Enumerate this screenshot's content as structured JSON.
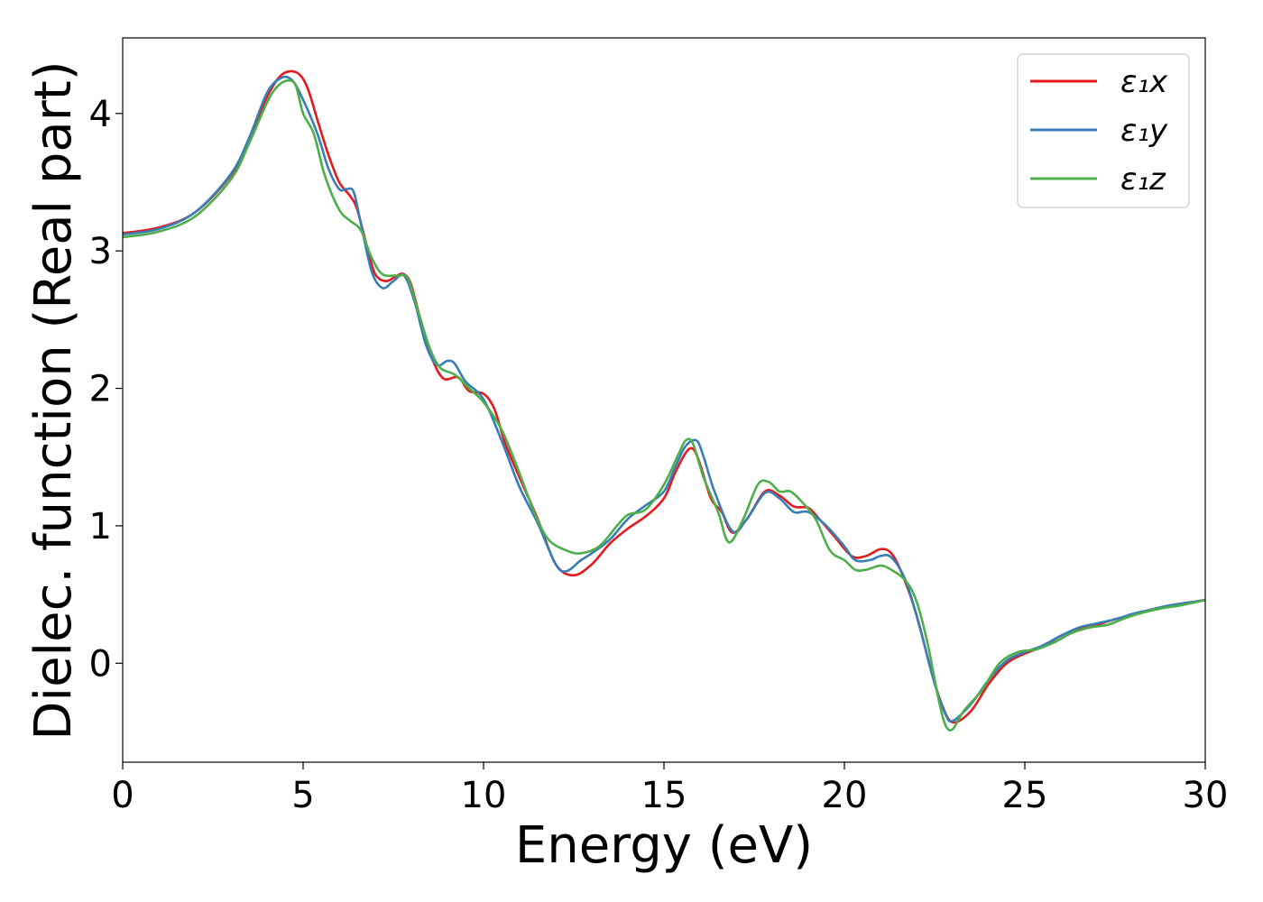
{
  "chart_data": {
    "type": "line",
    "xlabel": "Energy (eV)",
    "ylabel": "Dielec. function (Real part)",
    "xlim": [
      0,
      30
    ],
    "ylim": [
      -0.72,
      4.55
    ],
    "xticks": [
      0,
      5,
      10,
      15,
      20,
      25,
      30
    ],
    "yticks": [
      0,
      1,
      2,
      3,
      4
    ],
    "grid": false,
    "legend_position": "top-right",
    "series": [
      {
        "name": "ε₁x",
        "color": "#e41a1c",
        "points": [
          [
            0,
            3.13
          ],
          [
            1,
            3.17
          ],
          [
            2,
            3.28
          ],
          [
            3,
            3.55
          ],
          [
            3.5,
            3.8
          ],
          [
            4,
            4.12
          ],
          [
            4.4,
            4.28
          ],
          [
            4.8,
            4.3
          ],
          [
            5.1,
            4.2
          ],
          [
            5.4,
            3.95
          ],
          [
            5.7,
            3.7
          ],
          [
            6,
            3.5
          ],
          [
            6.3,
            3.4
          ],
          [
            6.5,
            3.3
          ],
          [
            6.8,
            3.0
          ],
          [
            7,
            2.83
          ],
          [
            7.3,
            2.78
          ],
          [
            7.6,
            2.82
          ],
          [
            7.8,
            2.83
          ],
          [
            8,
            2.75
          ],
          [
            8.3,
            2.45
          ],
          [
            8.6,
            2.2
          ],
          [
            8.9,
            2.07
          ],
          [
            9.3,
            2.08
          ],
          [
            9.6,
            1.98
          ],
          [
            10,
            1.96
          ],
          [
            10.3,
            1.85
          ],
          [
            10.6,
            1.6
          ],
          [
            11,
            1.35
          ],
          [
            11.5,
            1.05
          ],
          [
            12,
            0.72
          ],
          [
            12.5,
            0.64
          ],
          [
            13,
            0.72
          ],
          [
            13.5,
            0.87
          ],
          [
            14,
            0.98
          ],
          [
            14.5,
            1.07
          ],
          [
            15,
            1.2
          ],
          [
            15.3,
            1.38
          ],
          [
            15.6,
            1.53
          ],
          [
            15.8,
            1.56
          ],
          [
            16,
            1.45
          ],
          [
            16.3,
            1.2
          ],
          [
            16.6,
            1.1
          ],
          [
            16.9,
            0.95
          ],
          [
            17.3,
            1.05
          ],
          [
            17.8,
            1.25
          ],
          [
            18.2,
            1.22
          ],
          [
            18.6,
            1.14
          ],
          [
            19,
            1.13
          ],
          [
            19.3,
            1.05
          ],
          [
            19.7,
            0.93
          ],
          [
            20.2,
            0.78
          ],
          [
            20.6,
            0.78
          ],
          [
            21,
            0.83
          ],
          [
            21.3,
            0.8
          ],
          [
            21.6,
            0.65
          ],
          [
            22,
            0.35
          ],
          [
            22.4,
            -0.05
          ],
          [
            22.7,
            -0.3
          ],
          [
            23,
            -0.43
          ],
          [
            23.5,
            -0.35
          ],
          [
            24,
            -0.15
          ],
          [
            24.5,
            0.0
          ],
          [
            25,
            0.07
          ],
          [
            25.5,
            0.12
          ],
          [
            26,
            0.2
          ],
          [
            26.5,
            0.25
          ],
          [
            27,
            0.28
          ],
          [
            27.5,
            0.32
          ],
          [
            28,
            0.35
          ],
          [
            28.5,
            0.39
          ],
          [
            29,
            0.42
          ],
          [
            29.5,
            0.44
          ],
          [
            30,
            0.46
          ]
        ]
      },
      {
        "name": "ε₁y",
        "color": "#377eb8",
        "points": [
          [
            0,
            3.12
          ],
          [
            1,
            3.16
          ],
          [
            2,
            3.28
          ],
          [
            3,
            3.56
          ],
          [
            3.5,
            3.82
          ],
          [
            4,
            4.15
          ],
          [
            4.4,
            4.26
          ],
          [
            4.7,
            4.24
          ],
          [
            5,
            4.1
          ],
          [
            5.4,
            3.85
          ],
          [
            5.7,
            3.6
          ],
          [
            6,
            3.45
          ],
          [
            6.2,
            3.45
          ],
          [
            6.4,
            3.43
          ],
          [
            6.6,
            3.2
          ],
          [
            6.9,
            2.85
          ],
          [
            7.2,
            2.73
          ],
          [
            7.5,
            2.78
          ],
          [
            7.8,
            2.82
          ],
          [
            8.1,
            2.62
          ],
          [
            8.4,
            2.32
          ],
          [
            8.7,
            2.17
          ],
          [
            9,
            2.2
          ],
          [
            9.2,
            2.18
          ],
          [
            9.5,
            2.05
          ],
          [
            10,
            1.92
          ],
          [
            10.5,
            1.62
          ],
          [
            11,
            1.28
          ],
          [
            11.5,
            1.02
          ],
          [
            12,
            0.72
          ],
          [
            12.3,
            0.67
          ],
          [
            12.7,
            0.75
          ],
          [
            13,
            0.8
          ],
          [
            13.5,
            0.9
          ],
          [
            14,
            1.05
          ],
          [
            14.5,
            1.15
          ],
          [
            15,
            1.25
          ],
          [
            15.3,
            1.42
          ],
          [
            15.6,
            1.58
          ],
          [
            15.9,
            1.62
          ],
          [
            16.1,
            1.5
          ],
          [
            16.4,
            1.25
          ],
          [
            16.9,
            0.96
          ],
          [
            17.3,
            1.05
          ],
          [
            17.8,
            1.24
          ],
          [
            18.2,
            1.2
          ],
          [
            18.6,
            1.1
          ],
          [
            19,
            1.1
          ],
          [
            19.5,
            1.0
          ],
          [
            20,
            0.85
          ],
          [
            20.3,
            0.75
          ],
          [
            20.7,
            0.75
          ],
          [
            21,
            0.78
          ],
          [
            21.3,
            0.77
          ],
          [
            21.7,
            0.6
          ],
          [
            22.1,
            0.25
          ],
          [
            22.5,
            -0.15
          ],
          [
            22.8,
            -0.37
          ],
          [
            23,
            -0.42
          ],
          [
            23.5,
            -0.3
          ],
          [
            24,
            -0.12
          ],
          [
            24.5,
            0.02
          ],
          [
            25,
            0.08
          ],
          [
            25.5,
            0.13
          ],
          [
            26,
            0.2
          ],
          [
            26.5,
            0.26
          ],
          [
            27,
            0.29
          ],
          [
            27.5,
            0.32
          ],
          [
            28,
            0.36
          ],
          [
            28.5,
            0.39
          ],
          [
            29,
            0.42
          ],
          [
            29.5,
            0.44
          ],
          [
            30,
            0.46
          ]
        ]
      },
      {
        "name": "ε₁z",
        "color": "#4daf4a",
        "points": [
          [
            0,
            3.1
          ],
          [
            1,
            3.14
          ],
          [
            2,
            3.25
          ],
          [
            3,
            3.52
          ],
          [
            3.5,
            3.78
          ],
          [
            4,
            4.08
          ],
          [
            4.3,
            4.2
          ],
          [
            4.6,
            4.24
          ],
          [
            4.8,
            4.2
          ],
          [
            5,
            4.0
          ],
          [
            5.3,
            3.85
          ],
          [
            5.6,
            3.55
          ],
          [
            6,
            3.3
          ],
          [
            6.3,
            3.22
          ],
          [
            6.6,
            3.15
          ],
          [
            6.9,
            2.95
          ],
          [
            7.2,
            2.83
          ],
          [
            7.6,
            2.82
          ],
          [
            7.9,
            2.8
          ],
          [
            8.2,
            2.55
          ],
          [
            8.5,
            2.3
          ],
          [
            8.8,
            2.15
          ],
          [
            9.2,
            2.1
          ],
          [
            9.6,
            2.0
          ],
          [
            10,
            1.9
          ],
          [
            10.5,
            1.7
          ],
          [
            11,
            1.38
          ],
          [
            11.4,
            1.1
          ],
          [
            11.8,
            0.9
          ],
          [
            12.3,
            0.82
          ],
          [
            12.7,
            0.8
          ],
          [
            13.2,
            0.85
          ],
          [
            13.7,
            1.0
          ],
          [
            14,
            1.08
          ],
          [
            14.5,
            1.12
          ],
          [
            15,
            1.3
          ],
          [
            15.4,
            1.52
          ],
          [
            15.6,
            1.62
          ],
          [
            15.8,
            1.6
          ],
          [
            16.1,
            1.35
          ],
          [
            16.5,
            1.1
          ],
          [
            16.8,
            0.88
          ],
          [
            17.2,
            1.05
          ],
          [
            17.6,
            1.3
          ],
          [
            17.9,
            1.32
          ],
          [
            18.2,
            1.25
          ],
          [
            18.5,
            1.25
          ],
          [
            18.8,
            1.18
          ],
          [
            19.2,
            1.05
          ],
          [
            19.6,
            0.82
          ],
          [
            20,
            0.75
          ],
          [
            20.3,
            0.68
          ],
          [
            20.6,
            0.68
          ],
          [
            21,
            0.71
          ],
          [
            21.3,
            0.68
          ],
          [
            21.7,
            0.6
          ],
          [
            22,
            0.45
          ],
          [
            22.3,
            0.15
          ],
          [
            22.6,
            -0.25
          ],
          [
            22.8,
            -0.45
          ],
          [
            23,
            -0.48
          ],
          [
            23.3,
            -0.35
          ],
          [
            23.8,
            -0.2
          ],
          [
            24.3,
            0.0
          ],
          [
            24.8,
            0.08
          ],
          [
            25.3,
            0.1
          ],
          [
            25.8,
            0.15
          ],
          [
            26.3,
            0.22
          ],
          [
            26.8,
            0.26
          ],
          [
            27.3,
            0.28
          ],
          [
            27.8,
            0.33
          ],
          [
            28.3,
            0.37
          ],
          [
            28.8,
            0.4
          ],
          [
            29.3,
            0.42
          ],
          [
            30,
            0.46
          ]
        ]
      }
    ]
  }
}
